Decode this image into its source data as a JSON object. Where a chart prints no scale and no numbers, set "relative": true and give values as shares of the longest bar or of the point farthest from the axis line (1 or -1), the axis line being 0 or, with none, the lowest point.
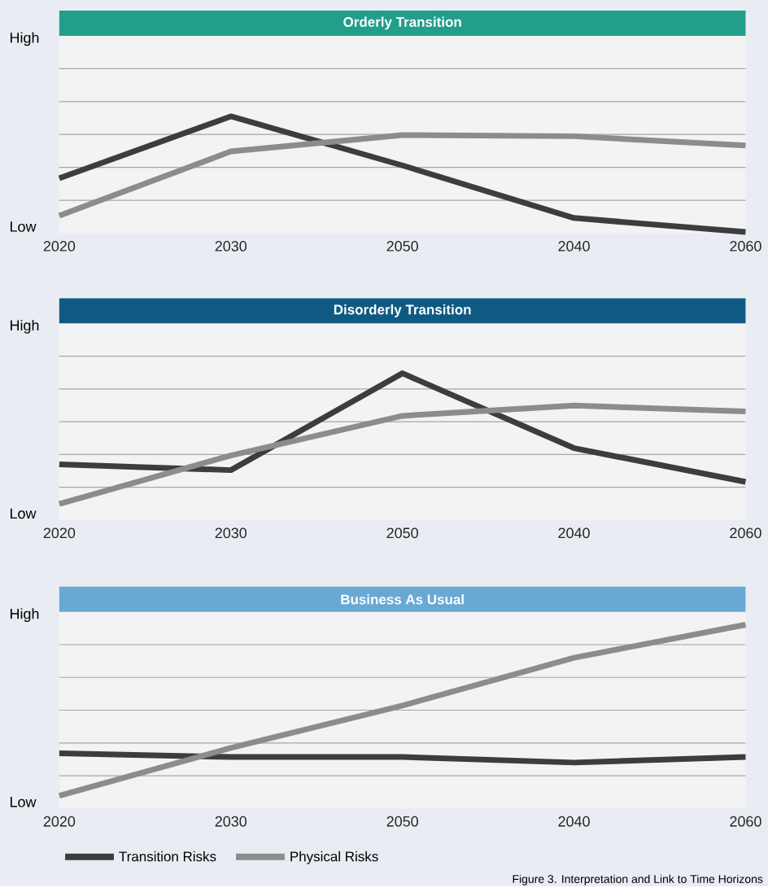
{
  "chart_data": [
    {
      "type": "line",
      "title": "Orderly Transition",
      "relative": true,
      "grid": "y",
      "categories": [
        "2020",
        "2030",
        "2050",
        "2040",
        "2060"
      ],
      "annotations": [
        "High",
        "Low"
      ],
      "series": [
        {
          "color": "#3d3d3d",
          "values": [
            0.47,
            1,
            0.58,
            0.13,
            0.01
          ]
        },
        {
          "color": "#8c8c8c",
          "values": [
            0.15,
            0.7,
            0.84,
            0.83,
            0.75
          ]
        }
      ]
    },
    {
      "type": "line",
      "title": "Disorderly Transition",
      "relative": true,
      "grid": "y",
      "categories": [
        "2020",
        "2030",
        "2050",
        "2040",
        "2060"
      ],
      "annotations": [
        "High",
        "Low"
      ],
      "series": [
        {
          "color": "#3d3d3d",
          "values": [
            0.38,
            0.34,
            1,
            0.49,
            0.26
          ]
        },
        {
          "color": "#8c8c8c",
          "values": [
            0.11,
            0.44,
            0.71,
            0.78,
            0.74
          ]
        }
      ]
    },
    {
      "type": "line",
      "title": "Business As Usual",
      "relative": true,
      "grid": "y",
      "legend": "bottom",
      "categories": [
        "2020",
        "2030",
        "2050",
        "2040",
        "2060"
      ],
      "annotations": [
        "High",
        "Low",
        "Figure 3. Interpretation and Link to Time Horizons"
      ],
      "series": [
        {
          "name": "Transition Risks",
          "color": "#3d3d3d",
          "values": [
            0.3,
            0.28,
            0.28,
            0.25,
            0.28
          ]
        },
        {
          "name": "Physical Risks",
          "color": "#8c8c8c",
          "values": [
            0.07,
            0.33,
            0.56,
            0.82,
            1
          ]
        }
      ]
    }
  ]
}
